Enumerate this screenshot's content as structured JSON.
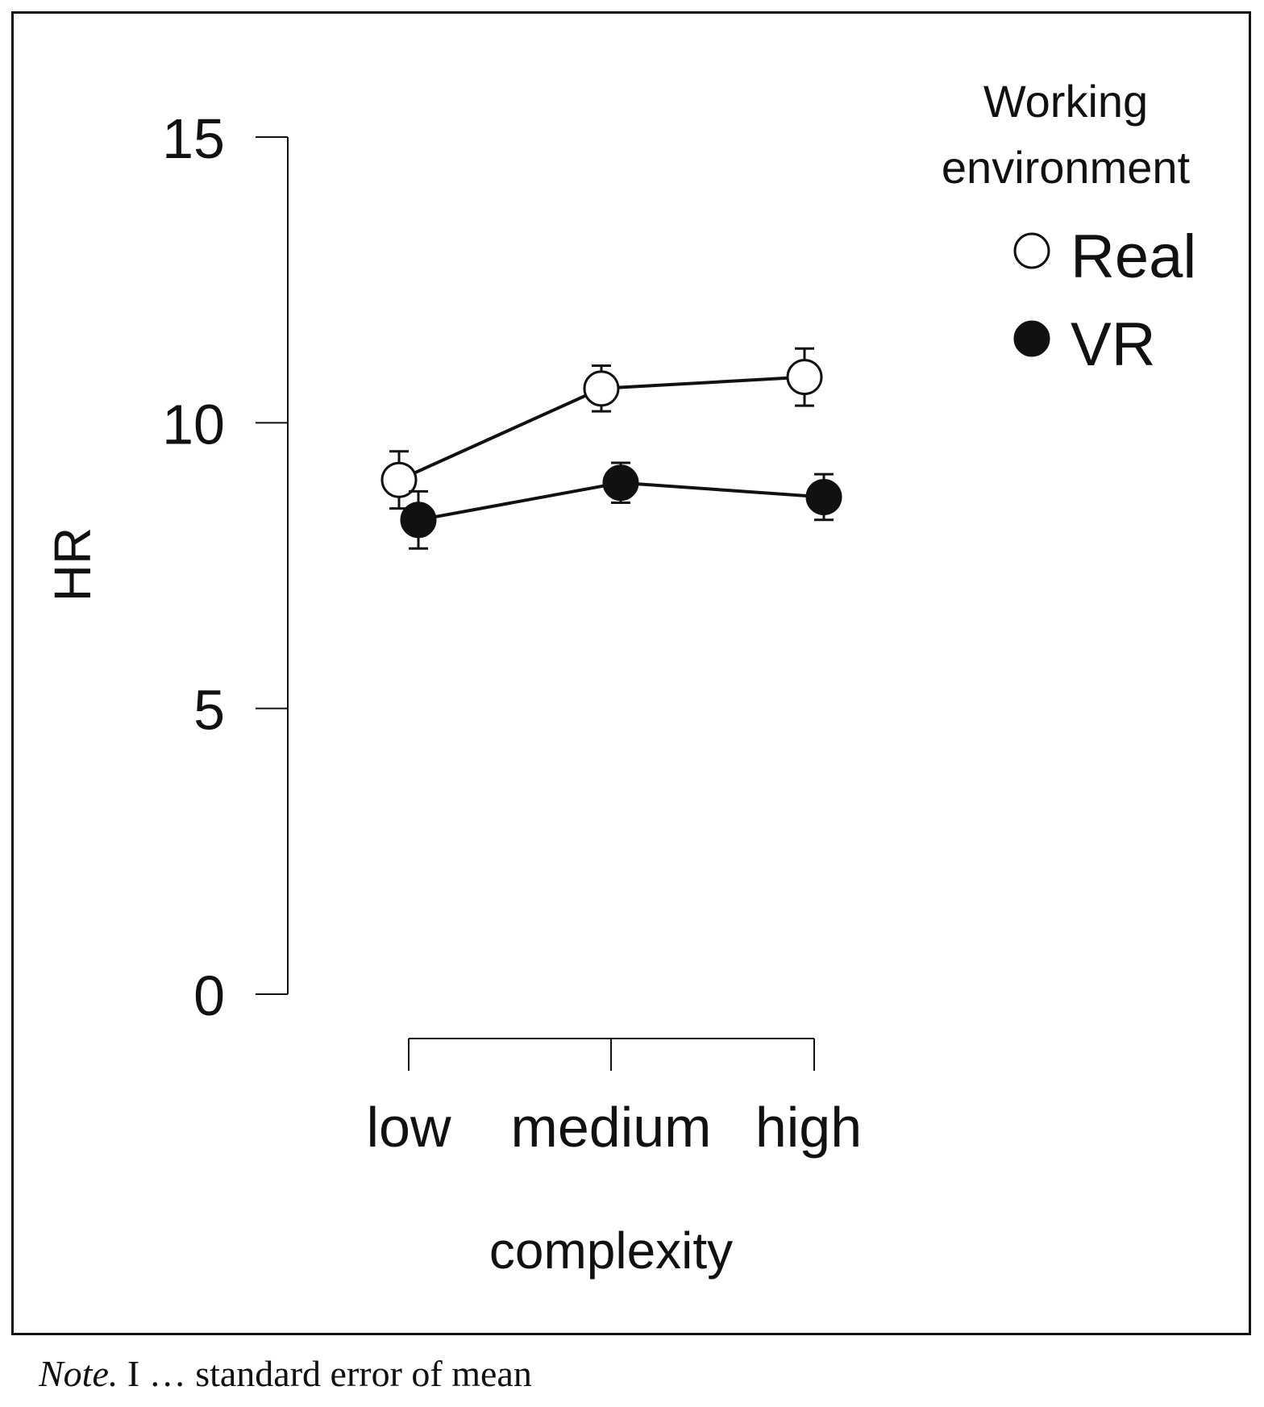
{
  "chart_data": {
    "type": "line",
    "title": "",
    "xlabel": "complexity",
    "ylabel": "HR",
    "categories": [
      "low",
      "medium",
      "high"
    ],
    "ylim": [
      0,
      15
    ],
    "yticks": [
      "0",
      "5",
      "10",
      "15"
    ],
    "grid": false,
    "legend": {
      "title_line1": "Working",
      "title_line2": "environment",
      "placement": "top-right"
    },
    "series": [
      {
        "name": "Real",
        "marker": "open-circle",
        "values": [
          9.0,
          10.6,
          10.8
        ],
        "errors": [
          0.5,
          0.4,
          0.5
        ]
      },
      {
        "name": "VR",
        "marker": "filled-circle",
        "values": [
          8.3,
          8.95,
          8.7
        ],
        "errors": [
          0.5,
          0.35,
          0.4
        ]
      }
    ]
  },
  "note": {
    "label": "Note.",
    "text": " I … standard error of mean"
  },
  "colors": {
    "ink": "#111111",
    "open_fill": "#ffffff"
  }
}
